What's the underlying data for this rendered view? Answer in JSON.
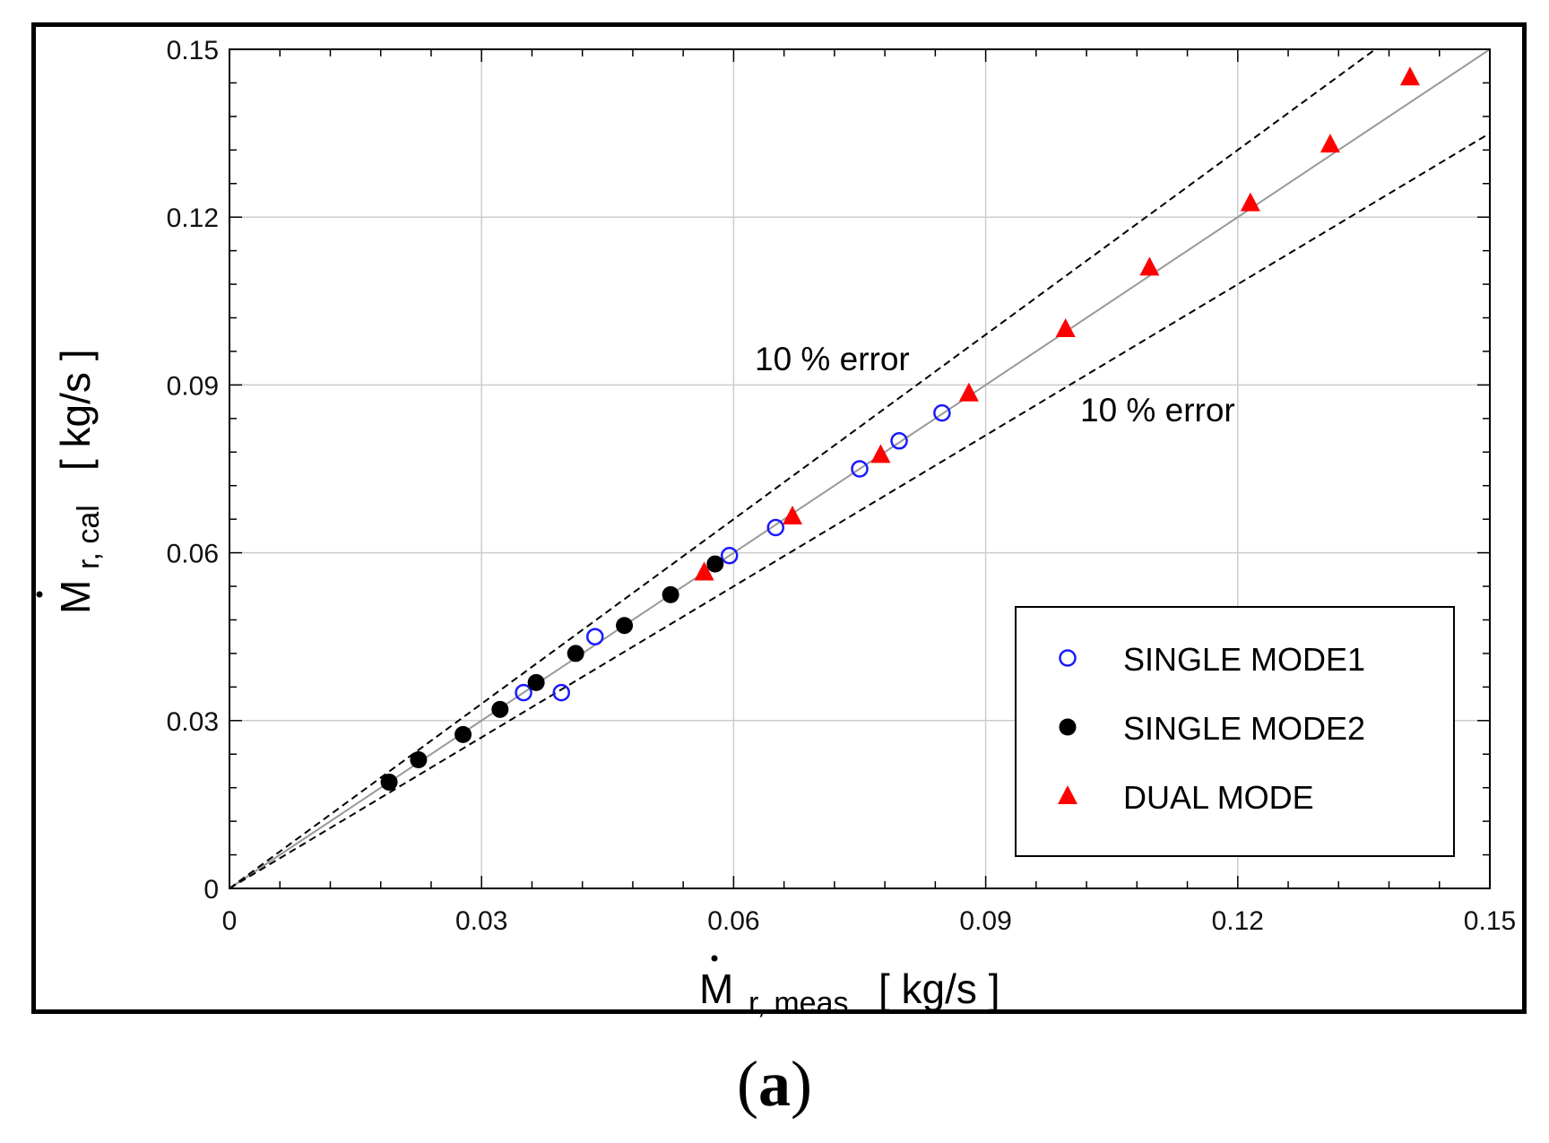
{
  "chart_data": {
    "type": "scatter",
    "xlabel": {
      "symbol": "M",
      "subscript": "r, meas",
      "units": "[ kg/s ]"
    },
    "ylabel": {
      "symbol": "M",
      "subscript": "r, cal",
      "units": "[ kg/s ]"
    },
    "xlim": [
      0,
      0.15
    ],
    "ylim": [
      0,
      0.15
    ],
    "xticks": [
      "0",
      "0.03",
      "0.06",
      "0.09",
      "0.12",
      "0.15"
    ],
    "yticks": [
      "0",
      "0.03",
      "0.06",
      "0.09",
      "0.12",
      "0.15"
    ],
    "grid": true,
    "legend_position": "bottom-right",
    "series": [
      {
        "name": "SINGLE MODE1",
        "marker": "open-circle",
        "color": "#1a1aff",
        "points": [
          [
            0.035,
            0.035
          ],
          [
            0.0395,
            0.035
          ],
          [
            0.0435,
            0.045
          ],
          [
            0.0595,
            0.0595
          ],
          [
            0.065,
            0.0645
          ],
          [
            0.075,
            0.075
          ],
          [
            0.0797,
            0.08
          ],
          [
            0.0848,
            0.085
          ]
        ]
      },
      {
        "name": "SINGLE MODE2",
        "marker": "filled-circle",
        "color": "#000000",
        "points": [
          [
            0.019,
            0.019
          ],
          [
            0.0225,
            0.023
          ],
          [
            0.0278,
            0.0275
          ],
          [
            0.0322,
            0.032
          ],
          [
            0.0365,
            0.0368
          ],
          [
            0.0412,
            0.042
          ],
          [
            0.047,
            0.047
          ],
          [
            0.0525,
            0.0525
          ],
          [
            0.0578,
            0.058
          ]
        ]
      },
      {
        "name": "DUAL MODE",
        "marker": "filled-triangle",
        "color": "#ff0000",
        "points": [
          [
            0.0565,
            0.0565
          ],
          [
            0.067,
            0.0665
          ],
          [
            0.0775,
            0.0775
          ],
          [
            0.088,
            0.0885
          ],
          [
            0.0995,
            0.1
          ],
          [
            0.1095,
            0.111
          ],
          [
            0.1215,
            0.1225
          ],
          [
            0.131,
            0.133
          ],
          [
            0.1405,
            0.145
          ]
        ]
      }
    ],
    "reference_lines": [
      {
        "name": "1:1 line",
        "slope": 1.0,
        "style": "solid",
        "color": "#999999"
      },
      {
        "name": "+10% error",
        "slope": 1.1,
        "style": "dashed",
        "color": "#000000"
      },
      {
        "name": "-10% error",
        "slope": 0.9,
        "style": "dashed",
        "color": "#000000"
      }
    ],
    "annotations": [
      "10 % error",
      "10 % error"
    ]
  },
  "caption": {
    "open": "(",
    "letter": "a",
    "close": ")"
  }
}
